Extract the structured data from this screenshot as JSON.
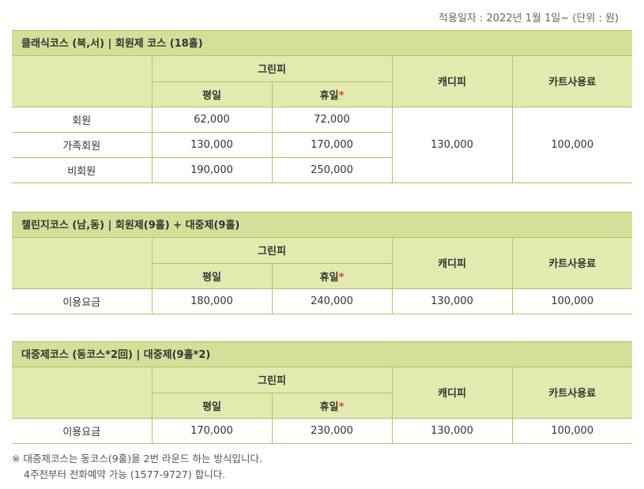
{
  "top_note": "적용일자 : 2022년 1월 1일~ (단위 : 원)",
  "headers": {
    "green_fee": "그린피",
    "weekday": "평일",
    "holiday": "휴일",
    "holiday_star": "*",
    "caddie": "캐디피",
    "cart": "카트사용료"
  },
  "sections": [
    {
      "title": "클래식코스 (북,서)  |  회원제 코스 (18홀)",
      "rows": [
        {
          "label": "회원",
          "weekday": "62,000",
          "holiday": "72,000"
        },
        {
          "label": "가족회원",
          "weekday": "130,000",
          "holiday": "170,000"
        },
        {
          "label": "비회원",
          "weekday": "190,000",
          "holiday": "250,000"
        }
      ],
      "caddie": "130,000",
      "cart": "100,000"
    },
    {
      "title": "챌린지코스 (남,동)  |  회원제(9홀) + 대중제(9홀)",
      "rows": [
        {
          "label": "이용요금",
          "weekday": "180,000",
          "holiday": "240,000"
        }
      ],
      "caddie": "130,000",
      "cart": "100,000"
    },
    {
      "title": "대중제코스 (동코스*2回)  |  대중제(9홀*2)",
      "rows": [
        {
          "label": "이용요금",
          "weekday": "170,000",
          "holiday": "230,000"
        }
      ],
      "caddie": "130,000",
      "cart": "100,000"
    }
  ],
  "footnote": {
    "line1": "※ 대중제코스는 동코스(9홀)을 2번 라운드 하는 방식입니다.",
    "line2": "4주전부터 전화예약 가능 (1577-9727) 합니다."
  }
}
